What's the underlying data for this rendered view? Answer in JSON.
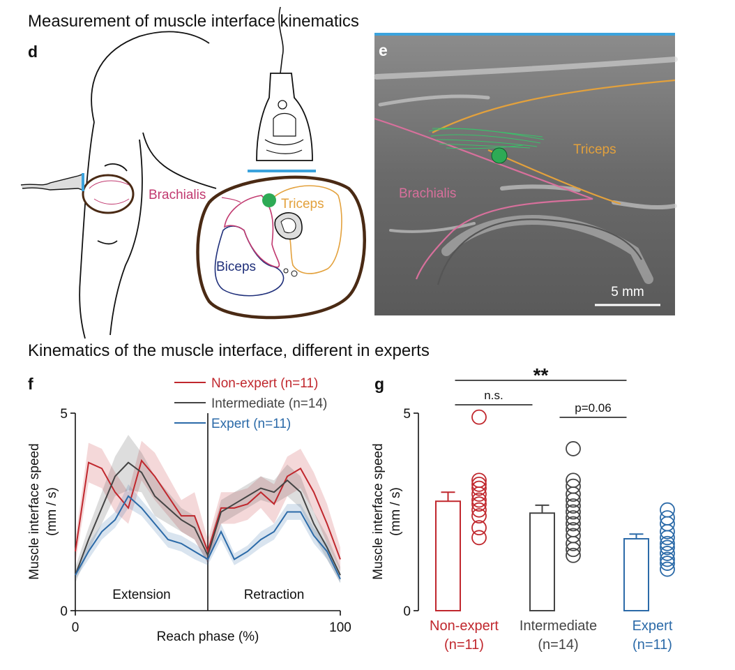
{
  "section_titles": [
    "Measurement of muscle interface kinematics",
    "Kinematics of the muscle interface, different in experts"
  ],
  "panel_d": {
    "label": "d",
    "labels": [
      "Brachialis",
      "Triceps",
      "Biceps"
    ]
  },
  "panel_e": {
    "label": "e",
    "labels": [
      "Triceps",
      "Brachialis"
    ],
    "scale_bar": "5 mm"
  },
  "chart_data": [
    {
      "type": "line",
      "label": "f",
      "x_label": "Reach phase (%)",
      "y_label": [
        "Muscle interface speed",
        "(mm / s)"
      ],
      "annotations": [
        "Extension",
        "Retraction"
      ],
      "x": [
        0,
        5,
        10,
        15,
        20,
        25,
        30,
        35,
        40,
        45,
        50,
        55,
        60,
        65,
        70,
        75,
        80,
        85,
        90,
        95,
        100
      ],
      "series": [
        {
          "name": "Non-expert (n=11)",
          "color": "#c0272d",
          "values": [
            1.5,
            3.75,
            3.6,
            3.0,
            2.6,
            3.8,
            3.4,
            2.9,
            2.4,
            2.4,
            1.5,
            2.6,
            2.6,
            2.7,
            3.0,
            2.7,
            3.4,
            3.6,
            3.0,
            2.2,
            1.3
          ],
          "errors": [
            0.3,
            0.5,
            0.5,
            0.5,
            0.4,
            0.5,
            0.6,
            0.5,
            0.4,
            0.6,
            0.3,
            0.4,
            0.4,
            0.4,
            0.4,
            0.5,
            0.5,
            0.5,
            0.5,
            0.5,
            0.3
          ]
        },
        {
          "name": "Intermediate (n=14)",
          "color": "#444444",
          "values": [
            0.9,
            1.8,
            2.6,
            3.4,
            3.75,
            3.5,
            2.9,
            2.6,
            2.3,
            2.1,
            1.4,
            2.5,
            2.7,
            2.9,
            3.1,
            3.0,
            3.3,
            3.0,
            2.2,
            1.6,
            0.9
          ],
          "errors": [
            0.2,
            0.3,
            0.4,
            0.5,
            0.7,
            0.5,
            0.5,
            0.4,
            0.3,
            0.3,
            0.2,
            0.3,
            0.3,
            0.3,
            0.3,
            0.3,
            0.4,
            0.4,
            0.3,
            0.3,
            0.2
          ]
        },
        {
          "name": "Expert (n=11)",
          "color": "#2b6aa8",
          "values": [
            0.9,
            1.5,
            2.0,
            2.3,
            2.9,
            2.6,
            2.2,
            1.8,
            1.7,
            1.5,
            1.3,
            2.0,
            1.3,
            1.5,
            1.8,
            2.0,
            2.5,
            2.5,
            1.9,
            1.5,
            0.8
          ],
          "errors": [
            0.1,
            0.2,
            0.2,
            0.2,
            0.3,
            0.2,
            0.2,
            0.2,
            0.2,
            0.2,
            0.15,
            0.2,
            0.15,
            0.15,
            0.2,
            0.2,
            0.2,
            0.2,
            0.2,
            0.2,
            0.1
          ]
        }
      ],
      "vline": 50,
      "xlim": [
        0,
        100
      ],
      "xticks": [
        0,
        100
      ],
      "ylim": [
        0,
        5
      ],
      "yticks": [
        0,
        5
      ]
    },
    {
      "type": "bar",
      "label": "g",
      "y_label": [
        "Muscle interface speed",
        "(mm / s)"
      ],
      "categories": [
        [
          "Non-expert",
          "(n=11)"
        ],
        [
          "Intermediate",
          "(n=14)"
        ],
        [
          "Expert",
          "(n=11)"
        ]
      ],
      "colors": [
        "#c0272d",
        "#444444",
        "#2b6aa8"
      ],
      "values": [
        2.77,
        2.47,
        1.82
      ],
      "errors": [
        0.23,
        0.2,
        0.12
      ],
      "points": [
        [
          4.9,
          3.3,
          3.2,
          3.1,
          2.95,
          2.8,
          2.7,
          2.55,
          2.4,
          2.1,
          1.85
        ],
        [
          4.1,
          3.3,
          3.15,
          2.95,
          2.8,
          2.65,
          2.5,
          2.35,
          2.2,
          2.05,
          1.9,
          1.7,
          1.55,
          1.4
        ],
        [
          2.55,
          2.35,
          2.2,
          2.0,
          1.85,
          1.7,
          1.6,
          1.45,
          1.3,
          1.2,
          1.05
        ]
      ],
      "significance": [
        {
          "text": "**",
          "from": 0,
          "to": 2
        },
        {
          "text": "n.s.",
          "from": 0,
          "to": 1
        },
        {
          "text": "p=0.06",
          "from": 1,
          "to": 2
        }
      ],
      "ylim": [
        0,
        5
      ],
      "yticks": [
        0,
        5
      ]
    }
  ]
}
